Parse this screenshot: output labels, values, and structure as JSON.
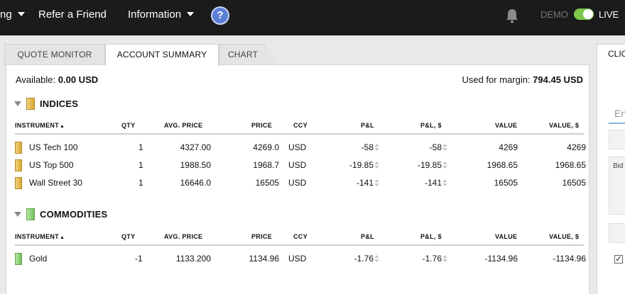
{
  "topbar": {
    "nav": [
      {
        "label": "ng",
        "has_caret": true
      },
      {
        "label": "Refer a Friend",
        "has_caret": false
      },
      {
        "label": "Information",
        "has_caret": true
      }
    ],
    "help_label": "?",
    "demo_label": "DEMO",
    "live_label": "LIVE",
    "toggle_on": true
  },
  "tabs": [
    {
      "label": "QUOTE MONITOR",
      "active": false
    },
    {
      "label": "ACCOUNT SUMMARY",
      "active": true
    },
    {
      "label": "CHART",
      "active": false
    }
  ],
  "summary": {
    "available_label": "Available:",
    "available_value": "0.00 USD",
    "margin_label": "Used for margin:",
    "margin_value": "794.45 USD"
  },
  "columns": [
    "INSTRUMENT",
    "QTY",
    "AVG. PRICE",
    "PRICE",
    "CCY",
    "P&L",
    "P&L, $",
    "VALUE",
    "VALUE, $"
  ],
  "sections": [
    {
      "title": "INDICES",
      "rows": [
        {
          "instrument": "US Tech 100",
          "qty": "1",
          "avg_price": "4327.00",
          "price": "4269.0",
          "ccy": "USD",
          "pl": "-58",
          "pl_usd": "-58",
          "value": "4269",
          "value_usd": "4269"
        },
        {
          "instrument": "US Top 500",
          "qty": "1",
          "avg_price": "1988.50",
          "price": "1968.7",
          "ccy": "USD",
          "pl": "-19.85",
          "pl_usd": "-19.85",
          "value": "1968.65",
          "value_usd": "1968.65"
        },
        {
          "instrument": "Wall Street 30",
          "qty": "1",
          "avg_price": "16646.0",
          "price": "16505",
          "ccy": "USD",
          "pl": "-141",
          "pl_usd": "-141",
          "value": "16505",
          "value_usd": "16505"
        }
      ]
    },
    {
      "title": "COMMODITIES",
      "rows": [
        {
          "instrument": "Gold",
          "qty": "-1",
          "avg_price": "1133.200",
          "price": "1134.96",
          "ccy": "USD",
          "pl": "-1.76",
          "pl_usd": "-1.76",
          "value": "-1134.96",
          "value_usd": "-1134.96"
        }
      ]
    }
  ],
  "right_panel": {
    "header": "CLIC",
    "input_placeholder": "En",
    "bid_label": "Bid",
    "checkbox_checked": true,
    "check_mark": "✓"
  },
  "colors": {
    "topbar_bg": "#1b1b1b",
    "indices_marker": "#d9a933",
    "commodities_marker": "#6fc25a",
    "toggle_on": "#7bc84b",
    "help_blue": "#5b7fd6"
  }
}
